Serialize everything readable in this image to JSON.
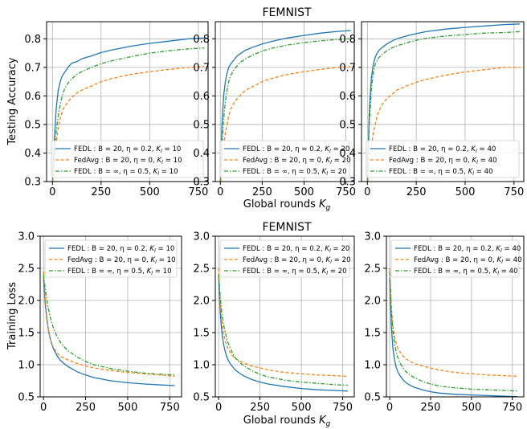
{
  "figure": {
    "top_title": "FEMNIST",
    "bottom_title": "FEMNIST",
    "top_ylabel": "Testing Accuracy",
    "bottom_ylabel": "Training Loss",
    "xlabel_main": "Global rounds ",
    "xlabel_sub": "K",
    "xlabel_subsub": "g"
  },
  "colors": {
    "FEDL_B20": "#1f77b4",
    "FedAvg_B20": "#ff7f0e",
    "FEDL_Binf": "#2ca02c"
  },
  "chart_data": [
    {
      "type": "line",
      "panel": "top-1",
      "title": "",
      "xlabel": "",
      "ylabel": "Testing Accuracy",
      "xlim": [
        -30,
        800
      ],
      "ylim": [
        0.3,
        0.86
      ],
      "yticks": [
        0.3,
        0.4,
        0.5,
        0.6,
        0.7,
        0.8
      ],
      "xticks": [
        0,
        250,
        500,
        750
      ],
      "grid": true,
      "legend": "lower-right",
      "series": [
        {
          "name": "FEDL : B = 20, η = 0.2, K_l = 10",
          "style": "solid",
          "color": "#1f77b4",
          "x": [
            0,
            10,
            20,
            30,
            40,
            50,
            60,
            80,
            100,
            125,
            150,
            200,
            250,
            300,
            400,
            500,
            600,
            700,
            780
          ],
          "y": [
            0.3,
            0.45,
            0.56,
            0.62,
            0.65,
            0.67,
            0.68,
            0.7,
            0.715,
            0.72,
            0.73,
            0.74,
            0.752,
            0.76,
            0.774,
            0.784,
            0.792,
            0.8,
            0.803
          ]
        },
        {
          "name": "FedAvg : B = 20, η = 0, K_l = 10",
          "style": "dashed",
          "color": "#ff7f0e",
          "x": [
            0,
            10,
            20,
            30,
            40,
            50,
            60,
            80,
            100,
            125,
            150,
            200,
            250,
            300,
            400,
            500,
            600,
            700,
            780
          ],
          "y": [
            0.28,
            0.38,
            0.44,
            0.49,
            0.52,
            0.545,
            0.56,
            0.58,
            0.595,
            0.61,
            0.62,
            0.635,
            0.65,
            0.66,
            0.675,
            0.685,
            0.693,
            0.7,
            0.703
          ]
        },
        {
          "name": "FEDL : B = ∞, η = 0.5, K_l = 10",
          "style": "dashdot",
          "color": "#2ca02c",
          "x": [
            0,
            10,
            20,
            30,
            40,
            50,
            60,
            80,
            100,
            125,
            150,
            200,
            250,
            300,
            400,
            500,
            600,
            700,
            780
          ],
          "y": [
            0.29,
            0.4,
            0.48,
            0.53,
            0.57,
            0.6,
            0.62,
            0.645,
            0.66,
            0.675,
            0.685,
            0.7,
            0.713,
            0.722,
            0.737,
            0.75,
            0.758,
            0.765,
            0.768
          ]
        }
      ]
    },
    {
      "type": "line",
      "panel": "top-2",
      "title": "FEMNIST",
      "xlabel": "Global rounds K_g",
      "ylabel": "",
      "xlim": [
        -30,
        800
      ],
      "ylim": [
        0.3,
        0.86
      ],
      "yticks": [
        0.3,
        0.4,
        0.5,
        0.6,
        0.7,
        0.8
      ],
      "xticks": [
        0,
        250,
        500,
        750
      ],
      "grid": true,
      "legend": "lower-right",
      "series": [
        {
          "name": "FEDL : B = 20, η = 0.2, K_l = 20",
          "style": "solid",
          "color": "#1f77b4",
          "x": [
            0,
            10,
            20,
            30,
            40,
            50,
            60,
            80,
            100,
            125,
            150,
            200,
            250,
            300,
            400,
            500,
            600,
            700,
            780
          ],
          "y": [
            0.3,
            0.5,
            0.6,
            0.65,
            0.68,
            0.7,
            0.71,
            0.725,
            0.74,
            0.75,
            0.76,
            0.772,
            0.782,
            0.79,
            0.803,
            0.812,
            0.82,
            0.826,
            0.829
          ]
        },
        {
          "name": "FedAvg : B = 20, η = 0, K_l = 20",
          "style": "dashed",
          "color": "#ff7f0e",
          "x": [
            0,
            10,
            20,
            30,
            40,
            50,
            60,
            80,
            100,
            125,
            150,
            200,
            250,
            300,
            400,
            500,
            600,
            700,
            780
          ],
          "y": [
            0.28,
            0.36,
            0.42,
            0.47,
            0.5,
            0.53,
            0.55,
            0.575,
            0.59,
            0.605,
            0.62,
            0.635,
            0.65,
            0.66,
            0.675,
            0.685,
            0.693,
            0.7,
            0.702
          ]
        },
        {
          "name": "FEDL : B = ∞, η = 0.5, K_l = 20",
          "style": "dashdot",
          "color": "#2ca02c",
          "x": [
            0,
            10,
            20,
            30,
            40,
            50,
            60,
            80,
            100,
            125,
            150,
            200,
            250,
            300,
            400,
            500,
            600,
            700,
            780
          ],
          "y": [
            0.29,
            0.42,
            0.52,
            0.58,
            0.62,
            0.65,
            0.67,
            0.69,
            0.705,
            0.72,
            0.73,
            0.745,
            0.757,
            0.766,
            0.778,
            0.787,
            0.793,
            0.798,
            0.8
          ]
        }
      ]
    },
    {
      "type": "line",
      "panel": "top-3",
      "title": "",
      "xlabel": "",
      "ylabel": "",
      "xlim": [
        -30,
        800
      ],
      "ylim": [
        0.3,
        0.86
      ],
      "yticks": [
        0.3,
        0.4,
        0.5,
        0.6,
        0.7,
        0.8
      ],
      "xticks": [
        0,
        250,
        500,
        750
      ],
      "grid": true,
      "legend": "lower-right",
      "series": [
        {
          "name": "FEDL : B = 20, η = 0.2, K_l = 40",
          "style": "solid",
          "color": "#1f77b4",
          "x": [
            0,
            10,
            20,
            30,
            40,
            50,
            60,
            80,
            100,
            125,
            150,
            200,
            250,
            300,
            400,
            500,
            600,
            700,
            780
          ],
          "y": [
            0.3,
            0.55,
            0.66,
            0.71,
            0.735,
            0.75,
            0.76,
            0.772,
            0.782,
            0.792,
            0.8,
            0.81,
            0.818,
            0.825,
            0.834,
            0.84,
            0.845,
            0.85,
            0.852
          ]
        },
        {
          "name": "FedAvg : B = 20, η = 0, K_l = 40",
          "style": "dashed",
          "color": "#ff7f0e",
          "x": [
            0,
            10,
            20,
            30,
            40,
            50,
            60,
            80,
            100,
            125,
            150,
            200,
            250,
            300,
            400,
            500,
            600,
            700,
            780
          ],
          "y": [
            0.28,
            0.36,
            0.42,
            0.47,
            0.5,
            0.53,
            0.55,
            0.575,
            0.59,
            0.605,
            0.62,
            0.635,
            0.648,
            0.658,
            0.673,
            0.684,
            0.692,
            0.7,
            0.7
          ]
        },
        {
          "name": "FEDL : B = ∞, η = 0.5, K_l = 40",
          "style": "dashdot",
          "color": "#2ca02c",
          "x": [
            0,
            10,
            20,
            30,
            40,
            50,
            60,
            80,
            100,
            125,
            150,
            200,
            250,
            300,
            400,
            500,
            600,
            700,
            780
          ],
          "y": [
            0.29,
            0.5,
            0.62,
            0.68,
            0.71,
            0.725,
            0.735,
            0.748,
            0.758,
            0.768,
            0.775,
            0.786,
            0.795,
            0.802,
            0.81,
            0.815,
            0.82,
            0.822,
            0.825
          ]
        }
      ]
    },
    {
      "type": "line",
      "panel": "bottom-1",
      "title": "",
      "xlabel": "",
      "ylabel": "Training Loss",
      "xlim": [
        -20,
        820
      ],
      "ylim": [
        0.5,
        3.0
      ],
      "yticks": [
        0.5,
        1.0,
        1.5,
        2.0,
        2.5,
        3.0
      ],
      "xticks": [
        0,
        250,
        500,
        750
      ],
      "grid": true,
      "legend": "upper-right",
      "series": [
        {
          "name": "FEDL : B = 20, η = 0.2, K_l = 10",
          "style": "solid",
          "color": "#1f77b4",
          "x": [
            0,
            10,
            20,
            30,
            40,
            50,
            60,
            80,
            100,
            125,
            150,
            200,
            250,
            300,
            400,
            500,
            600,
            700,
            780
          ],
          "y": [
            2.35,
            1.95,
            1.7,
            1.52,
            1.4,
            1.31,
            1.24,
            1.14,
            1.07,
            1.01,
            0.965,
            0.89,
            0.84,
            0.8,
            0.75,
            0.72,
            0.7,
            0.685,
            0.675
          ]
        },
        {
          "name": "FedAvg : B = 20, η = 0, K_l = 10",
          "style": "dashed",
          "color": "#ff7f0e",
          "x": [
            0,
            10,
            20,
            30,
            40,
            50,
            60,
            80,
            100,
            125,
            150,
            200,
            250,
            300,
            400,
            500,
            600,
            700,
            780
          ],
          "y": [
            2.45,
            2.02,
            1.72,
            1.53,
            1.4,
            1.32,
            1.26,
            1.18,
            1.13,
            1.1,
            1.07,
            1.02,
            0.98,
            0.95,
            0.91,
            0.88,
            0.86,
            0.84,
            0.82
          ]
        },
        {
          "name": "FEDL : B = ∞, η = 0.5, K_l = 10",
          "style": "dashdot",
          "color": "#2ca02c",
          "x": [
            0,
            10,
            20,
            30,
            40,
            50,
            60,
            80,
            100,
            125,
            150,
            200,
            250,
            300,
            400,
            500,
            600,
            700,
            780
          ],
          "y": [
            2.4,
            2.18,
            2.0,
            1.86,
            1.74,
            1.64,
            1.56,
            1.44,
            1.35,
            1.27,
            1.21,
            1.12,
            1.05,
            1.0,
            0.94,
            0.9,
            0.87,
            0.85,
            0.84
          ]
        }
      ]
    },
    {
      "type": "line",
      "panel": "bottom-2",
      "title": "FEMNIST",
      "xlabel": "Global rounds K_g",
      "ylabel": "",
      "xlim": [
        -20,
        820
      ],
      "ylim": [
        0.5,
        3.0
      ],
      "yticks": [
        0.5,
        1.0,
        1.5,
        2.0,
        2.5,
        3.0
      ],
      "xticks": [
        0,
        250,
        500,
        750
      ],
      "grid": true,
      "legend": "upper-right",
      "series": [
        {
          "name": "FEDL : B = 20, η = 0.2, K_l = 20",
          "style": "solid",
          "color": "#1f77b4",
          "x": [
            0,
            10,
            20,
            30,
            40,
            50,
            60,
            80,
            100,
            125,
            150,
            200,
            250,
            300,
            400,
            500,
            600,
            700,
            780
          ],
          "y": [
            2.4,
            1.8,
            1.5,
            1.32,
            1.2,
            1.12,
            1.06,
            0.98,
            0.92,
            0.87,
            0.83,
            0.77,
            0.73,
            0.7,
            0.66,
            0.63,
            0.61,
            0.6,
            0.59
          ]
        },
        {
          "name": "FedAvg : B = 20, η = 0, K_l = 20",
          "style": "dashed",
          "color": "#ff7f0e",
          "x": [
            0,
            10,
            20,
            30,
            40,
            50,
            60,
            80,
            100,
            125,
            150,
            200,
            250,
            300,
            400,
            500,
            600,
            700,
            780
          ],
          "y": [
            2.5,
            1.95,
            1.66,
            1.48,
            1.37,
            1.29,
            1.23,
            1.15,
            1.1,
            1.06,
            1.03,
            0.98,
            0.95,
            0.92,
            0.88,
            0.86,
            0.84,
            0.83,
            0.82
          ]
        },
        {
          "name": "FEDL : B = ∞, η = 0.5, K_l = 20",
          "style": "dashdot",
          "color": "#2ca02c",
          "x": [
            0,
            10,
            20,
            30,
            40,
            50,
            60,
            80,
            100,
            125,
            150,
            200,
            250,
            300,
            400,
            500,
            600,
            700,
            780
          ],
          "y": [
            2.4,
            2.05,
            1.8,
            1.63,
            1.5,
            1.4,
            1.32,
            1.2,
            1.11,
            1.04,
            0.99,
            0.91,
            0.85,
            0.81,
            0.76,
            0.73,
            0.71,
            0.69,
            0.68
          ]
        }
      ]
    },
    {
      "type": "line",
      "panel": "bottom-3",
      "title": "",
      "xlabel": "",
      "ylabel": "",
      "xlim": [
        -20,
        820
      ],
      "ylim": [
        0.5,
        3.0
      ],
      "yticks": [
        0.5,
        1.0,
        1.5,
        2.0,
        2.5,
        3.0
      ],
      "xticks": [
        0,
        250,
        500,
        750
      ],
      "grid": true,
      "legend": "upper-right",
      "series": [
        {
          "name": "FEDL : B = 20, η = 0.2, K_l = 40",
          "style": "solid",
          "color": "#1f77b4",
          "x": [
            0,
            10,
            20,
            30,
            40,
            50,
            60,
            80,
            100,
            125,
            150,
            200,
            250,
            300,
            400,
            500,
            600,
            700,
            780
          ],
          "y": [
            2.35,
            1.6,
            1.25,
            1.07,
            0.96,
            0.89,
            0.84,
            0.77,
            0.72,
            0.68,
            0.65,
            0.61,
            0.58,
            0.56,
            0.54,
            0.53,
            0.52,
            0.51,
            0.505
          ]
        },
        {
          "name": "FedAvg : B = 20, η = 0, K_l = 40",
          "style": "dashed",
          "color": "#ff7f0e",
          "x": [
            0,
            10,
            20,
            30,
            40,
            50,
            60,
            80,
            100,
            125,
            150,
            200,
            250,
            300,
            400,
            500,
            600,
            700,
            780
          ],
          "y": [
            2.5,
            1.9,
            1.6,
            1.43,
            1.33,
            1.26,
            1.21,
            1.14,
            1.09,
            1.05,
            1.02,
            0.98,
            0.95,
            0.92,
            0.88,
            0.86,
            0.84,
            0.83,
            0.82
          ]
        },
        {
          "name": "FEDL : B = ∞, η = 0.5, K_l = 40",
          "style": "dashdot",
          "color": "#2ca02c",
          "x": [
            0,
            10,
            20,
            30,
            40,
            50,
            60,
            80,
            100,
            125,
            150,
            200,
            250,
            300,
            400,
            500,
            600,
            700,
            780
          ],
          "y": [
            2.45,
            1.85,
            1.52,
            1.33,
            1.2,
            1.11,
            1.04,
            0.95,
            0.89,
            0.84,
            0.8,
            0.74,
            0.7,
            0.67,
            0.64,
            0.62,
            0.61,
            0.6,
            0.59
          ]
        }
      ]
    }
  ]
}
